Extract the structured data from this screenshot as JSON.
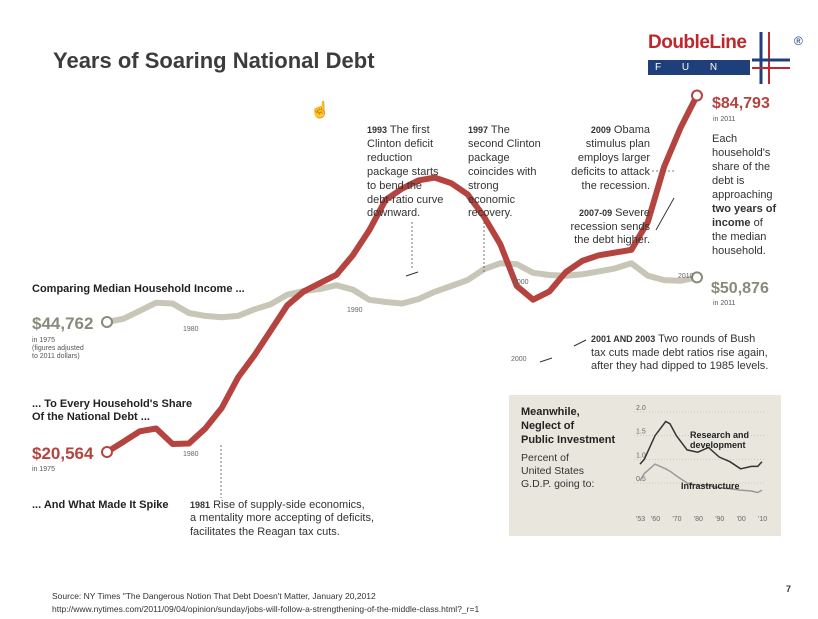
{
  "title": "Years of Soaring National Debt",
  "logo": {
    "word": "DoubleLine",
    "sub": "F U N D S",
    "reg": "®"
  },
  "page_number": "7",
  "footer": {
    "source": "Source:  NY Times \"The Dangerous Notion That Debt Doesn't Matter, January 20,2012",
    "url": "http://www.nytimes.com/2011/09/04/opinion/sunday/jobs-will-follow-a-strengthening-of-the-middle-class.html?_r=1"
  },
  "colors": {
    "debt": "#b5433f",
    "income": "#c8c6b6",
    "logo_red": "#c0272d",
    "logo_blue": "#1f3f7a",
    "inset_bg": "#e9e7dd"
  },
  "labels": {
    "income_heading": "Comparing Median Household Income ...",
    "income_1975_value": "$44,762",
    "income_1975_note1": "in 1975",
    "income_1975_note2": "(figures adjusted",
    "income_1975_note3": "to 2011 dollars)",
    "debt_heading_1": "... To Every Household's Share",
    "debt_heading_2": "Of the National Debt ...",
    "debt_1975_value": "$20,564",
    "debt_1975_note": "in 1975",
    "spike_heading": "... And What Made It Spike",
    "debt_2011_value": "$84,793",
    "debt_2011_note": "in 2011",
    "income_2011_value": "$50,876",
    "income_2011_note": "in 2011",
    "year_1980_a": "1980",
    "year_1980_b": "1980",
    "year_1990": "1990",
    "year_2000_a": "2000",
    "year_2000_b": "2000",
    "year_2010": "2010",
    "right_note": [
      "Each",
      "household's",
      "share of the",
      "debt is",
      "approaching"
    ],
    "right_note_bold": [
      "two years of",
      "income"
    ],
    "right_note_tail": [
      " of",
      "the median",
      "household."
    ]
  },
  "annotations": {
    "a1993": {
      "year": "1993",
      "lines": [
        " The first",
        "Clinton deficit",
        "reduction",
        "package starts",
        "to bend the",
        "debt-ratio curve",
        "downward."
      ]
    },
    "a1997": {
      "year": "1997",
      "lines": [
        " The",
        "second Clinton",
        "package",
        "coincides with",
        "strong",
        "economic",
        "recovery."
      ]
    },
    "a2009": {
      "year": "2009",
      "lines": [
        " Obama",
        "stimulus plan",
        "employs larger",
        "deficits to attack",
        "the recession."
      ]
    },
    "a2007": {
      "year": "2007-09",
      "lines": [
        " Severe",
        "recession sends",
        "the debt higher."
      ]
    },
    "a2001": {
      "year": "2001 AND 2003",
      "lines": [
        " Two rounds of Bush",
        "tax cuts made debt ratios rise again,",
        "after they had dipped to 1985 levels."
      ]
    },
    "a1981": {
      "year": "1981",
      "lines": [
        " Rise of supply-side economics,",
        "a mentality more accepting of deficits,",
        "facilitates the Reagan tax cuts."
      ]
    }
  },
  "inset": {
    "heading": [
      "Meanwhile,",
      "Neglect of",
      "Public Investment"
    ],
    "sub": [
      "Percent of",
      "United States",
      "G.D.P. going to:"
    ],
    "series_labels": [
      "Research and",
      "development",
      "Infrastructure"
    ],
    "yticks": [
      "2.0",
      "1.5",
      "1.0",
      "0.5"
    ],
    "xticks": [
      "'53",
      "'60",
      "'70",
      "'80",
      "'90",
      "'00",
      "'10"
    ]
  },
  "chart_data": [
    {
      "type": "line",
      "x": [
        1975,
        1976,
        1977,
        1978,
        1979,
        1980,
        1981,
        1982,
        1983,
        1984,
        1985,
        1986,
        1987,
        1988,
        1989,
        1990,
        1991,
        1992,
        1993,
        1994,
        1995,
        1996,
        1997,
        1998,
        1999,
        2000,
        2001,
        2002,
        2003,
        2004,
        2005,
        2006,
        2007,
        2008,
        2009,
        2010,
        2011
      ],
      "series": [
        {
          "name": "Median Household Income",
          "values": [
            44762,
            45200,
            46300,
            47400,
            47300,
            46000,
            45600,
            45400,
            45600,
            46500,
            47200,
            48500,
            49000,
            49300,
            49800,
            49200,
            47800,
            47500,
            47300,
            47900,
            48900,
            49700,
            50500,
            52000,
            52800,
            52700,
            51500,
            51200,
            51100,
            51300,
            51700,
            52100,
            52800,
            51100,
            50500,
            50400,
            50876
          ]
        },
        {
          "name": "Household Share of the National Debt",
          "values": [
            20564,
            22400,
            24300,
            24800,
            22000,
            22100,
            24800,
            28500,
            34000,
            38000,
            42500,
            47000,
            49500,
            51000,
            52500,
            56000,
            60500,
            66000,
            68000,
            69500,
            70000,
            69000,
            67000,
            63000,
            58000,
            50500,
            48000,
            49500,
            53000,
            55000,
            56000,
            56500,
            57000,
            62000,
            72000,
            79000,
            84793
          ]
        }
      ],
      "income_start": "$44,762",
      "income_end": "$50,876",
      "debt_start": "$20,564",
      "debt_end": "$84,793"
    },
    {
      "type": "line",
      "x": [
        1953,
        1955,
        1960,
        1965,
        1967,
        1970,
        1975,
        1980,
        1985,
        1990,
        1995,
        2000,
        2005,
        2008,
        2010
      ],
      "ylim": [
        0.3,
        2.0
      ],
      "series": [
        {
          "name": "Research and development",
          "values": [
            0.9,
            1.0,
            1.5,
            1.8,
            1.75,
            1.5,
            1.2,
            1.15,
            1.25,
            1.05,
            0.95,
            0.8,
            0.85,
            0.85,
            0.95
          ]
        },
        {
          "name": "Infrastructure",
          "values": [
            0.55,
            0.7,
            0.9,
            0.8,
            0.75,
            0.65,
            0.5,
            0.45,
            0.45,
            0.4,
            0.38,
            0.35,
            0.33,
            0.3,
            0.35
          ]
        }
      ]
    }
  ]
}
